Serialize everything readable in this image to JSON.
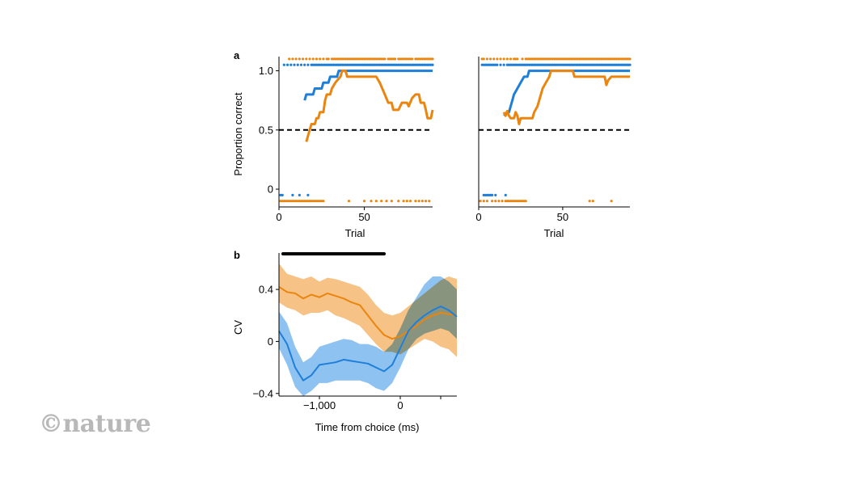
{
  "watermark": "©nature",
  "colors": {
    "blue": "#1f7fd8",
    "orange": "#ea850f",
    "blue_band": "#7ab7ee",
    "orange_band": "#f4b771",
    "overlap": "#a98b66",
    "black": "#000000"
  },
  "chart_data": [
    {
      "id": "a-left",
      "panel_label": "a",
      "type": "line",
      "xlabel": "Trial",
      "ylabel": "Proportion correct",
      "xlim": [
        0,
        90
      ],
      "ylim": [
        -0.15,
        1.12
      ],
      "xticks": [
        0,
        50
      ],
      "yticks": [
        0,
        0.5,
        1.0
      ],
      "ytick_labels": [
        "0",
        "0.5",
        "1.0"
      ],
      "chance_level": 0.5,
      "series": [
        {
          "name": "blue",
          "color": "blue",
          "points": [
            [
              15,
              0.75
            ],
            [
              16,
              0.8
            ],
            [
              20,
              0.8
            ],
            [
              21,
              0.85
            ],
            [
              25,
              0.85
            ],
            [
              26,
              0.9
            ],
            [
              29,
              0.9
            ],
            [
              30,
              0.95
            ],
            [
              34,
              0.95
            ],
            [
              35,
              1.0
            ],
            [
              90,
              1.0
            ]
          ]
        },
        {
          "name": "orange",
          "color": "orange",
          "points": [
            [
              16,
              0.4
            ],
            [
              17,
              0.45
            ],
            [
              19,
              0.55
            ],
            [
              21,
              0.55
            ],
            [
              22,
              0.6
            ],
            [
              23,
              0.6
            ],
            [
              24,
              0.65
            ],
            [
              26,
              0.65
            ],
            [
              27,
              0.75
            ],
            [
              28,
              0.8
            ],
            [
              30,
              0.8
            ],
            [
              31,
              0.85
            ],
            [
              33,
              0.9
            ],
            [
              36,
              0.95
            ],
            [
              37,
              1.0
            ],
            [
              39,
              1.0
            ],
            [
              40,
              0.95
            ],
            [
              57,
              0.95
            ],
            [
              59,
              0.9
            ],
            [
              62,
              0.8
            ],
            [
              64,
              0.73
            ],
            [
              66,
              0.73
            ],
            [
              67,
              0.67
            ],
            [
              70,
              0.67
            ],
            [
              72,
              0.73
            ],
            [
              75,
              0.73
            ],
            [
              76,
              0.7
            ],
            [
              78,
              0.77
            ],
            [
              80,
              0.8
            ],
            [
              82,
              0.8
            ],
            [
              83,
              0.73
            ],
            [
              85,
              0.73
            ],
            [
              86,
              0.67
            ],
            [
              87,
              0.6
            ],
            [
              89,
              0.6
            ],
            [
              90,
              0.67
            ]
          ]
        }
      ],
      "trial_outcomes": [
        {
          "color": "blue",
          "y": 1.05,
          "x": [
            3,
            5,
            7,
            9,
            11,
            13,
            15,
            17,
            19,
            20,
            21,
            22,
            23,
            24,
            25,
            26,
            27,
            28,
            29,
            30,
            31,
            32,
            33,
            34,
            35,
            36,
            37,
            38,
            39,
            40,
            41,
            42,
            43,
            44,
            45,
            46,
            47,
            48,
            49,
            50,
            51,
            52,
            53,
            54,
            55,
            56,
            57,
            58,
            59,
            60,
            61,
            62,
            63,
            64,
            65,
            66,
            67,
            68,
            69,
            70,
            71,
            72,
            73,
            74,
            75,
            76,
            77,
            78,
            79,
            80,
            81,
            82,
            83,
            84,
            85,
            86,
            87,
            88,
            89,
            90
          ]
        },
        {
          "color": "orange",
          "y": 1.1,
          "x": [
            6,
            8,
            10,
            12,
            14,
            16,
            18,
            20,
            22,
            24,
            26,
            28,
            29,
            31,
            32,
            33,
            34,
            35,
            36,
            37,
            38,
            39,
            40,
            41,
            42,
            43,
            44,
            45,
            46,
            47,
            48,
            49,
            50,
            51,
            52,
            53,
            54,
            55,
            56,
            57,
            58,
            59,
            60,
            61,
            62,
            64,
            65,
            66,
            67,
            68,
            70,
            71,
            72,
            73,
            74,
            75,
            76,
            77,
            78,
            80,
            81,
            82,
            83,
            84,
            85,
            86,
            87,
            88,
            89,
            90
          ]
        },
        {
          "color": "blue",
          "y": -0.05,
          "x": [
            1,
            2,
            8,
            12,
            17
          ]
        },
        {
          "color": "orange",
          "y": -0.1,
          "x": [
            1,
            2,
            3,
            4,
            5,
            6,
            7,
            8,
            9,
            10,
            11,
            12,
            13,
            14,
            15,
            16,
            17,
            18,
            19,
            20,
            21,
            22,
            23,
            24,
            25,
            26,
            41,
            50,
            54,
            57,
            60,
            63,
            66,
            70,
            73,
            75,
            77,
            80,
            82,
            84,
            86,
            88
          ]
        }
      ]
    },
    {
      "id": "a-right",
      "type": "line",
      "xlabel": "Trial",
      "xlim": [
        0,
        90
      ],
      "ylim": [
        -0.15,
        1.12
      ],
      "xticks": [
        0,
        50
      ],
      "chance_level": 0.5,
      "series": [
        {
          "name": "blue",
          "color": "blue",
          "points": [
            [
              15,
              0.62
            ],
            [
              17,
              0.65
            ],
            [
              18,
              0.65
            ],
            [
              19,
              0.7
            ],
            [
              20,
              0.75
            ],
            [
              21,
              0.8
            ],
            [
              23,
              0.85
            ],
            [
              25,
              0.9
            ],
            [
              27,
              0.95
            ],
            [
              29,
              0.95
            ],
            [
              30,
              1.0
            ],
            [
              90,
              1.0
            ]
          ]
        },
        {
          "name": "orange",
          "color": "orange",
          "points": [
            [
              15,
              0.65
            ],
            [
              16,
              0.62
            ],
            [
              17,
              0.66
            ],
            [
              18,
              0.62
            ],
            [
              19,
              0.6
            ],
            [
              21,
              0.6
            ],
            [
              22,
              0.65
            ],
            [
              23,
              0.62
            ],
            [
              24,
              0.55
            ],
            [
              25,
              0.6
            ],
            [
              32,
              0.6
            ],
            [
              33,
              0.65
            ],
            [
              35,
              0.7
            ],
            [
              37,
              0.8
            ],
            [
              38,
              0.85
            ],
            [
              40,
              0.9
            ],
            [
              42,
              0.95
            ],
            [
              43,
              1.0
            ],
            [
              56,
              1.0
            ],
            [
              57,
              0.95
            ],
            [
              75,
              0.95
            ],
            [
              76,
              0.88
            ],
            [
              77,
              0.92
            ],
            [
              79,
              0.95
            ],
            [
              90,
              0.95
            ]
          ]
        }
      ],
      "trial_outcomes": [
        {
          "color": "blue",
          "y": 1.05,
          "x": [
            2,
            3,
            4,
            5,
            6,
            7,
            8,
            9,
            10,
            11,
            13,
            15,
            17,
            18,
            19,
            20,
            21,
            22,
            23,
            24,
            25,
            26,
            27,
            28,
            29,
            30,
            31,
            32,
            33,
            34,
            35,
            36,
            37,
            38,
            39,
            40,
            41,
            42,
            43,
            44,
            45,
            46,
            47,
            48,
            49,
            50,
            51,
            52,
            53,
            54,
            55,
            56,
            57,
            58,
            59,
            60,
            61,
            62,
            63,
            64,
            65,
            66,
            67,
            68,
            69,
            70,
            71,
            72,
            73,
            74,
            75,
            76,
            77,
            78,
            79,
            80,
            81,
            82,
            83,
            84,
            85,
            86,
            87,
            88,
            89,
            90
          ]
        },
        {
          "color": "orange",
          "y": 1.1,
          "x": [
            2,
            3,
            5,
            7,
            9,
            11,
            13,
            15,
            17,
            19,
            21,
            22,
            23,
            26,
            28,
            29,
            30,
            31,
            32,
            33,
            34,
            35,
            36,
            37,
            38,
            39,
            40,
            41,
            42,
            43,
            44,
            45,
            46,
            47,
            48,
            49,
            50,
            51,
            52,
            53,
            54,
            55,
            56,
            57,
            58,
            59,
            60,
            61,
            62,
            63,
            64,
            65,
            66,
            67,
            68,
            69,
            70,
            71,
            72,
            73,
            74,
            75,
            76,
            77,
            78,
            79,
            80,
            81,
            82,
            83,
            84,
            85,
            86,
            87,
            88,
            89,
            90
          ]
        },
        {
          "color": "blue",
          "y": -0.05,
          "x": [
            3,
            4,
            5,
            6,
            7,
            8,
            10,
            16
          ]
        },
        {
          "color": "orange",
          "y": -0.1,
          "x": [
            1,
            3,
            5,
            8,
            10,
            12,
            14,
            16,
            17,
            18,
            19,
            20,
            21,
            22,
            23,
            24,
            25,
            26,
            27,
            28,
            66,
            68,
            79
          ]
        }
      ]
    },
    {
      "id": "b",
      "panel_label": "b",
      "type": "area",
      "xlabel": "Time from choice (ms)",
      "ylabel": "CV",
      "xlim": [
        -1500,
        700
      ],
      "ylim": [
        -0.42,
        0.68
      ],
      "xticks": [
        -1000,
        0,
        500
      ],
      "xtick_labels": [
        "−1,000",
        "0",
        ""
      ],
      "yticks": [
        -0.4,
        0,
        0.4
      ],
      "ytick_labels": [
        "−0.4",
        "0",
        "0.4"
      ],
      "significance_bar": [
        -1450,
        -200
      ],
      "series": [
        {
          "name": "orange",
          "color": "orange",
          "band_color": "orange_band",
          "x": [
            -1500,
            -1400,
            -1300,
            -1200,
            -1100,
            -1000,
            -900,
            -800,
            -700,
            -600,
            -500,
            -400,
            -300,
            -200,
            -100,
            0,
            100,
            200,
            300,
            400,
            500,
            600,
            700
          ],
          "mean": [
            0.42,
            0.38,
            0.37,
            0.33,
            0.36,
            0.34,
            0.37,
            0.35,
            0.33,
            0.3,
            0.28,
            0.2,
            0.12,
            0.05,
            0.02,
            0.04,
            0.08,
            0.12,
            0.17,
            0.2,
            0.22,
            0.21,
            0.2
          ],
          "lower": [
            0.3,
            0.26,
            0.24,
            0.2,
            0.22,
            0.22,
            0.24,
            0.2,
            0.18,
            0.15,
            0.12,
            0.05,
            -0.02,
            -0.08,
            -0.08,
            -0.1,
            -0.06,
            -0.02,
            0.02,
            0.0,
            -0.04,
            -0.06,
            -0.12
          ],
          "upper": [
            0.6,
            0.52,
            0.5,
            0.48,
            0.5,
            0.46,
            0.49,
            0.48,
            0.46,
            0.44,
            0.42,
            0.36,
            0.28,
            0.22,
            0.2,
            0.22,
            0.27,
            0.32,
            0.37,
            0.42,
            0.47,
            0.5,
            0.48
          ]
        },
        {
          "name": "blue",
          "color": "blue",
          "band_color": "blue_band",
          "x": [
            -1500,
            -1400,
            -1300,
            -1200,
            -1100,
            -1000,
            -900,
            -800,
            -700,
            -600,
            -500,
            -400,
            -300,
            -200,
            -100,
            0,
            100,
            200,
            300,
            400,
            500,
            600,
            700
          ],
          "mean": [
            0.08,
            -0.02,
            -0.2,
            -0.3,
            -0.26,
            -0.18,
            -0.17,
            -0.16,
            -0.14,
            -0.15,
            -0.16,
            -0.17,
            -0.2,
            -0.23,
            -0.18,
            -0.05,
            0.08,
            0.15,
            0.2,
            0.24,
            0.27,
            0.24,
            0.19
          ],
          "lower": [
            -0.05,
            -0.18,
            -0.35,
            -0.42,
            -0.38,
            -0.32,
            -0.32,
            -0.3,
            -0.3,
            -0.3,
            -0.3,
            -0.32,
            -0.36,
            -0.38,
            -0.32,
            -0.2,
            -0.06,
            0.02,
            0.06,
            0.08,
            0.1,
            0.08,
            0.02
          ],
          "upper": [
            0.23,
            0.14,
            -0.04,
            -0.16,
            -0.12,
            -0.04,
            -0.02,
            0.0,
            0.02,
            0.01,
            -0.02,
            -0.02,
            -0.04,
            -0.08,
            -0.02,
            0.1,
            0.24,
            0.34,
            0.44,
            0.5,
            0.5,
            0.46,
            0.4
          ]
        }
      ]
    }
  ]
}
